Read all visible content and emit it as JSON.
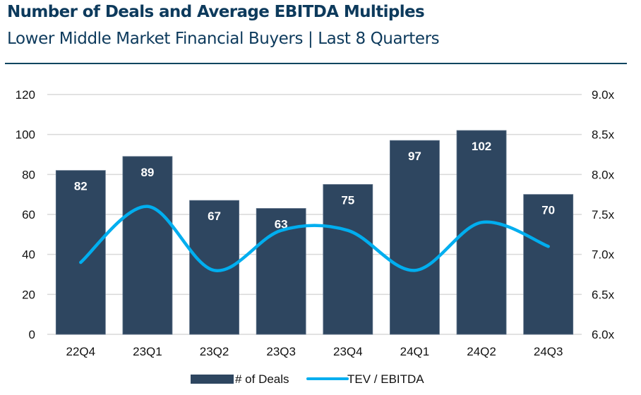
{
  "header": {
    "title": "Number of Deals and Average EBITDA Multiples",
    "subtitle": "Lower Middle Market Financial Buyers | Last 8 Quarters"
  },
  "colors": {
    "title": "#0d3a5c",
    "bar": "#2e4660",
    "line": "#00aeef",
    "grid": "#d9d9d9"
  },
  "chart_data": {
    "type": "bar",
    "title": "Number of Deals and Average EBITDA Multiples",
    "subtitle": "Lower Middle Market Financial Buyers | Last 8 Quarters",
    "categories": [
      "22Q4",
      "23Q1",
      "23Q2",
      "23Q3",
      "23Q4",
      "24Q1",
      "24Q2",
      "24Q3"
    ],
    "series": [
      {
        "name": "# of Deals",
        "type": "bar",
        "axis": "left",
        "values": [
          82,
          89,
          67,
          63,
          75,
          97,
          102,
          70
        ],
        "data_labels": true
      },
      {
        "name": "TEV / EBITDA",
        "type": "line",
        "axis": "right",
        "smooth": true,
        "values": [
          6.9,
          7.6,
          6.8,
          7.3,
          7.3,
          6.8,
          7.4,
          7.1
        ],
        "data_labels": false
      }
    ],
    "y_left": {
      "ylim": [
        0,
        120
      ],
      "ticks": [
        0,
        20,
        40,
        60,
        80,
        100,
        120
      ],
      "tick_labels": [
        "0",
        "20",
        "40",
        "60",
        "80",
        "100",
        "120"
      ]
    },
    "y_right": {
      "ylim": [
        6.0,
        9.0
      ],
      "ticks": [
        6.0,
        6.5,
        7.0,
        7.5,
        8.0,
        8.5,
        9.0
      ],
      "tick_labels": [
        "6.0x",
        "6.5x",
        "7.0x",
        "7.5x",
        "8.0x",
        "8.5x",
        "9.0x"
      ]
    },
    "xlabel": "",
    "ylabel": "",
    "grid": true,
    "legend": {
      "position": "bottom",
      "entries": [
        "# of Deals",
        "TEV / EBITDA"
      ]
    }
  }
}
